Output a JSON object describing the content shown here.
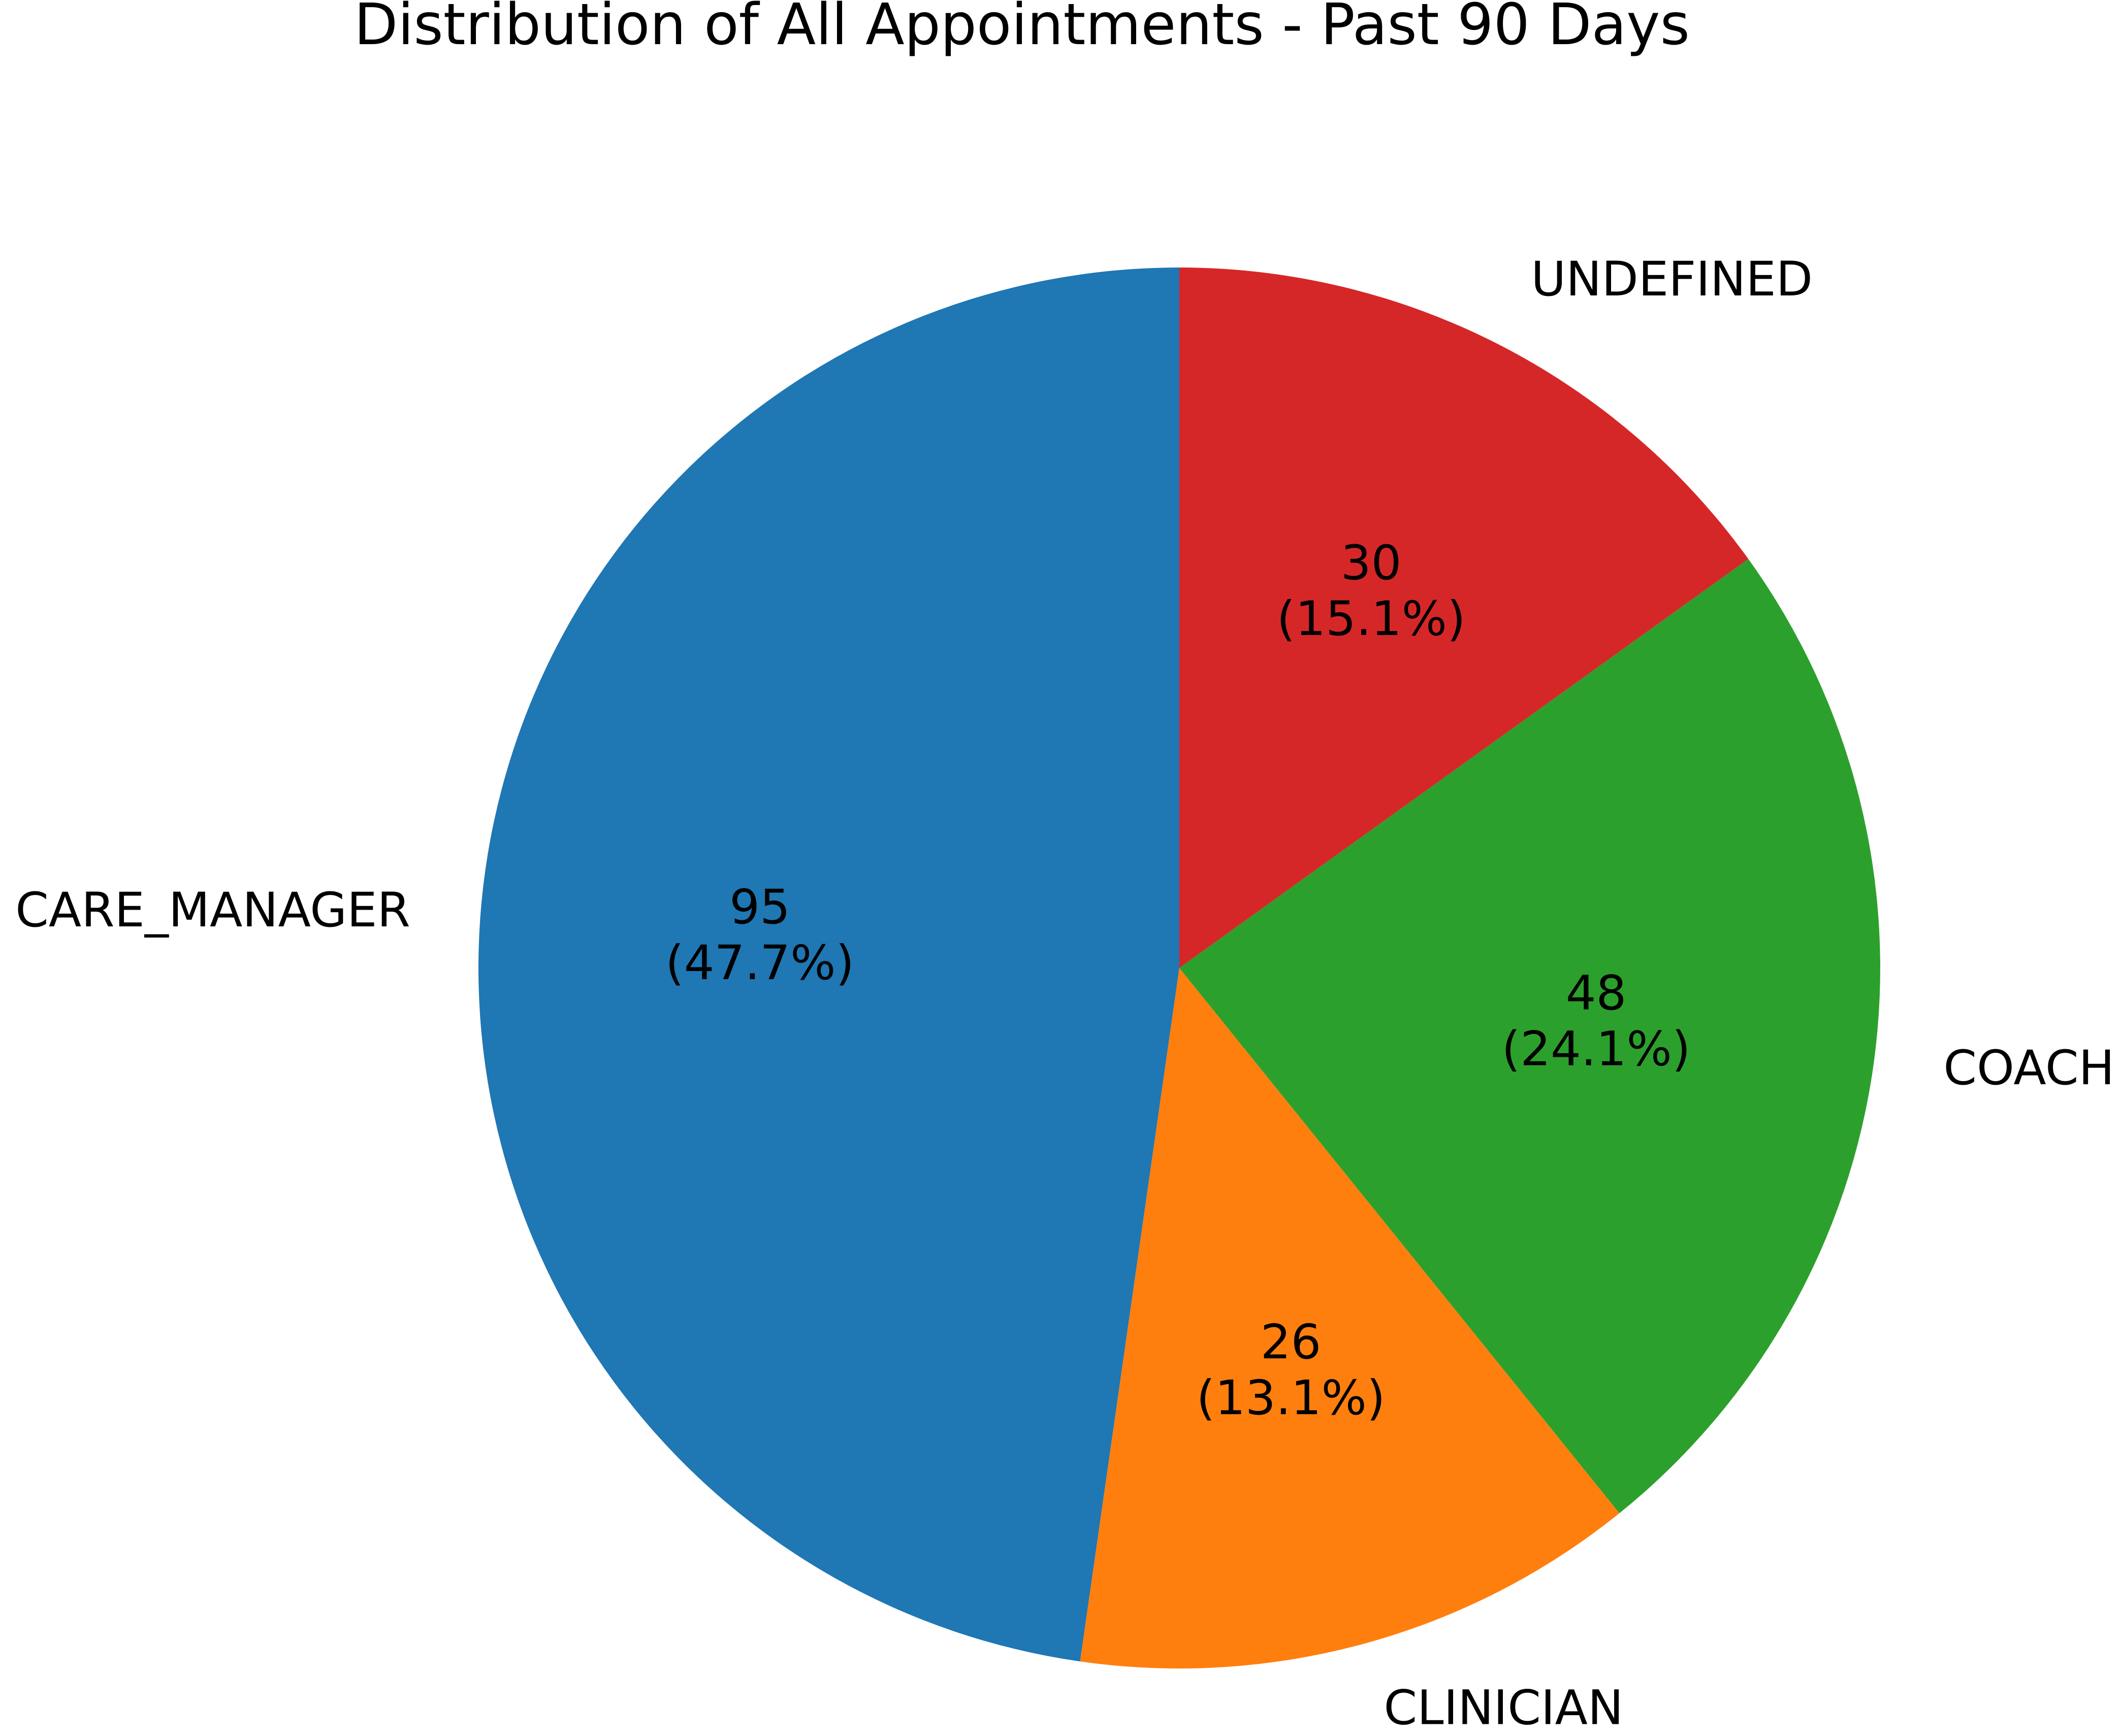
{
  "chart_data": {
    "type": "pie",
    "title": "Distribution of All Appointments - Past 90 Days",
    "start_angle_deg": 90,
    "direction": "counterclockwise",
    "slices": [
      {
        "label": "CARE_MANAGER",
        "value": 95,
        "value_label": "95",
        "percent_label": "(47.7%)",
        "color": "#1f77b4"
      },
      {
        "label": "CLINICIAN",
        "value": 26,
        "value_label": "26",
        "percent_label": "(13.1%)",
        "color": "#ff7f0e"
      },
      {
        "label": "COACH",
        "value": 48,
        "value_label": "48",
        "percent_label": "(24.1%)",
        "color": "#2ca02c"
      },
      {
        "label": "UNDEFINED",
        "value": 30,
        "value_label": "30",
        "percent_label": "(15.1%)",
        "color": "#d62728"
      }
    ]
  }
}
